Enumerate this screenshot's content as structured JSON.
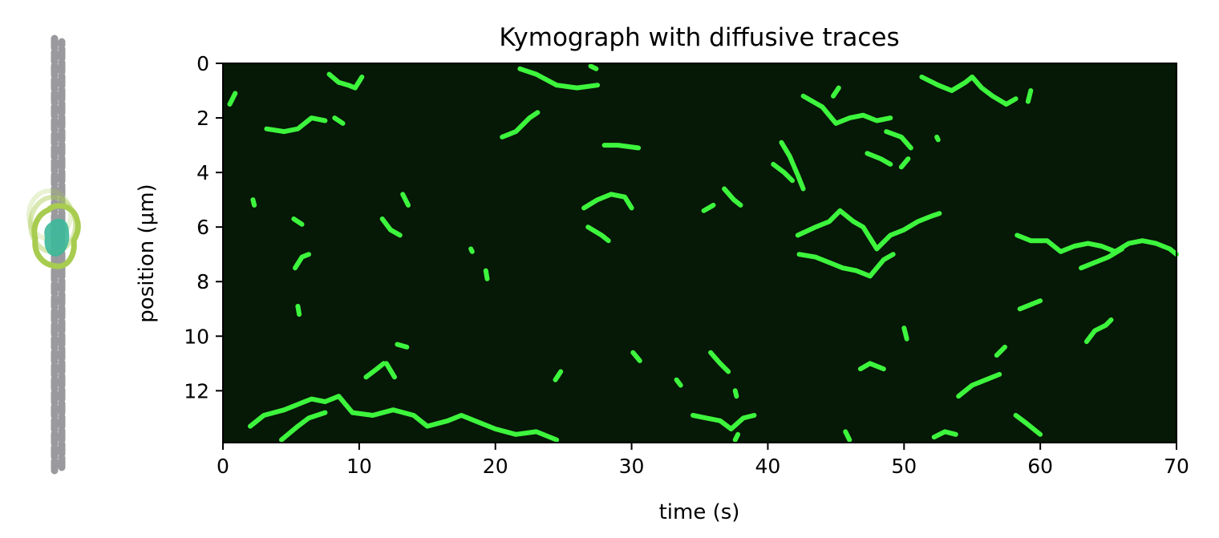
{
  "chart_data": {
    "type": "heatmap",
    "title": "Kymograph with diffusive traces",
    "xlabel": "time (s)",
    "ylabel": "position (μm)",
    "xlim": [
      0,
      70
    ],
    "ylim": [
      0,
      13.9
    ],
    "y_inverted": true,
    "x_ticks": [
      0,
      10,
      20,
      30,
      40,
      50,
      60,
      70
    ],
    "y_ticks": [
      0,
      2,
      4,
      6,
      8,
      10,
      12
    ],
    "x_tick_labels": [
      "0",
      "10",
      "20",
      "30",
      "40",
      "50",
      "60",
      "70"
    ],
    "y_tick_labels": [
      "0",
      "2",
      "4",
      "6",
      "8",
      "10",
      "12"
    ],
    "grid": false,
    "background_color": "#061806",
    "trace_color": "#3df53d",
    "traces": [
      [
        [
          0.5,
          1.5
        ],
        [
          0.9,
          1.1
        ]
      ],
      [
        [
          3.2,
          2.4
        ],
        [
          4.5,
          2.5
        ],
        [
          5.5,
          2.4
        ],
        [
          6.5,
          2.0
        ],
        [
          7.5,
          2.1
        ]
      ],
      [
        [
          8.2,
          2.0
        ],
        [
          8.8,
          2.2
        ]
      ],
      [
        [
          7.8,
          0.4
        ],
        [
          8.5,
          0.7
        ],
        [
          9.2,
          0.8
        ],
        [
          9.7,
          0.9
        ],
        [
          10.2,
          0.5
        ]
      ],
      [
        [
          2.2,
          5.0
        ],
        [
          2.3,
          5.2
        ]
      ],
      [
        [
          5.2,
          5.7
        ],
        [
          5.8,
          5.9
        ]
      ],
      [
        [
          5.3,
          7.5
        ],
        [
          5.8,
          7.1
        ],
        [
          6.3,
          7.0
        ]
      ],
      [
        [
          5.5,
          8.9
        ],
        [
          5.6,
          9.2
        ]
      ],
      [
        [
          11.7,
          5.7
        ],
        [
          12.3,
          6.1
        ],
        [
          13.0,
          6.3
        ]
      ],
      [
        [
          13.2,
          4.8
        ],
        [
          13.6,
          5.2
        ]
      ],
      [
        [
          18.2,
          6.8
        ],
        [
          18.3,
          6.9
        ]
      ],
      [
        [
          19.3,
          7.6
        ],
        [
          19.4,
          7.9
        ]
      ],
      [
        [
          10.5,
          11.5
        ],
        [
          11.3,
          11.2
        ],
        [
          11.8,
          11.0
        ]
      ],
      [
        [
          12.0,
          11.0
        ],
        [
          12.6,
          11.5
        ]
      ],
      [
        [
          12.8,
          10.3
        ],
        [
          13.5,
          10.4
        ]
      ],
      [
        [
          2.0,
          13.3
        ],
        [
          3.0,
          12.9
        ],
        [
          4.5,
          12.7
        ],
        [
          5.5,
          12.5
        ],
        [
          6.5,
          12.3
        ],
        [
          7.5,
          12.4
        ],
        [
          8.5,
          12.2
        ],
        [
          9.5,
          12.8
        ],
        [
          11.0,
          12.9
        ],
        [
          12.5,
          12.7
        ],
        [
          14.0,
          12.9
        ],
        [
          15.0,
          13.3
        ],
        [
          16.5,
          13.1
        ],
        [
          17.5,
          12.9
        ],
        [
          18.5,
          13.1
        ],
        [
          20.0,
          13.4
        ],
        [
          21.5,
          13.6
        ],
        [
          23.0,
          13.5
        ],
        [
          24.5,
          13.8
        ]
      ],
      [
        [
          4.3,
          13.8
        ],
        [
          5.5,
          13.3
        ],
        [
          6.3,
          13.0
        ],
        [
          7.5,
          12.8
        ]
      ],
      [
        [
          20.5,
          2.7
        ],
        [
          21.5,
          2.5
        ],
        [
          22.5,
          2.0
        ],
        [
          23.1,
          1.8
        ]
      ],
      [
        [
          21.8,
          0.2
        ],
        [
          23.0,
          0.4
        ],
        [
          24.5,
          0.8
        ],
        [
          26.0,
          0.9
        ],
        [
          27.5,
          0.8
        ]
      ],
      [
        [
          27.0,
          0.1
        ],
        [
          27.4,
          0.2
        ]
      ],
      [
        [
          24.4,
          11.6
        ],
        [
          24.8,
          11.3
        ]
      ],
      [
        [
          26.5,
          5.3
        ],
        [
          27.5,
          5.0
        ],
        [
          28.5,
          4.8
        ],
        [
          29.5,
          4.9
        ],
        [
          30.0,
          5.3
        ]
      ],
      [
        [
          26.8,
          6.0
        ],
        [
          27.8,
          6.3
        ],
        [
          28.3,
          6.5
        ]
      ],
      [
        [
          28.0,
          3.0
        ],
        [
          29.0,
          3.0
        ],
        [
          30.5,
          3.1
        ]
      ],
      [
        [
          30.1,
          10.6
        ],
        [
          30.6,
          10.9
        ]
      ],
      [
        [
          33.3,
          11.6
        ],
        [
          33.6,
          11.8
        ]
      ],
      [
        [
          35.3,
          5.4
        ],
        [
          36.0,
          5.2
        ]
      ],
      [
        [
          35.8,
          10.6
        ],
        [
          36.5,
          11.0
        ],
        [
          37.1,
          11.3
        ]
      ],
      [
        [
          36.8,
          4.6
        ],
        [
          37.5,
          5.0
        ],
        [
          38.0,
          5.2
        ]
      ],
      [
        [
          37.6,
          12.0
        ],
        [
          37.7,
          12.2
        ]
      ],
      [
        [
          34.5,
          12.9
        ],
        [
          35.5,
          13.0
        ],
        [
          36.5,
          13.1
        ],
        [
          37.3,
          13.4
        ],
        [
          38.2,
          13.0
        ],
        [
          39.0,
          12.9
        ]
      ],
      [
        [
          37.6,
          13.8
        ],
        [
          37.8,
          13.6
        ]
      ],
      [
        [
          40.4,
          3.7
        ],
        [
          41.2,
          4.0
        ],
        [
          41.8,
          4.3
        ]
      ],
      [
        [
          41.0,
          2.9
        ],
        [
          41.6,
          3.4
        ],
        [
          42.2,
          4.1
        ],
        [
          42.6,
          4.6
        ]
      ],
      [
        [
          42.6,
          1.2
        ],
        [
          44.0,
          1.6
        ],
        [
          45.0,
          2.2
        ],
        [
          46.0,
          2.0
        ],
        [
          47.0,
          1.9
        ],
        [
          48.0,
          2.1
        ],
        [
          49.0,
          2.0
        ]
      ],
      [
        [
          44.8,
          1.2
        ],
        [
          45.2,
          0.9
        ]
      ],
      [
        [
          42.2,
          6.3
        ],
        [
          43.5,
          6.0
        ],
        [
          44.5,
          5.8
        ],
        [
          45.3,
          5.4
        ],
        [
          46.3,
          5.8
        ],
        [
          47.0,
          6.0
        ],
        [
          47.5,
          6.4
        ],
        [
          48.0,
          6.8
        ],
        [
          49.0,
          6.3
        ],
        [
          50.0,
          6.1
        ],
        [
          51.0,
          5.8
        ],
        [
          52.0,
          5.6
        ],
        [
          52.6,
          5.5
        ]
      ],
      [
        [
          42.3,
          7.0
        ],
        [
          43.5,
          7.1
        ],
        [
          44.5,
          7.3
        ],
        [
          45.5,
          7.5
        ],
        [
          46.5,
          7.6
        ],
        [
          47.5,
          7.8
        ],
        [
          48.5,
          7.2
        ],
        [
          49.2,
          7.0
        ]
      ],
      [
        [
          47.3,
          3.3
        ],
        [
          48.3,
          3.5
        ],
        [
          49.0,
          3.7
        ]
      ],
      [
        [
          48.7,
          2.5
        ],
        [
          49.8,
          2.7
        ],
        [
          50.5,
          3.1
        ]
      ],
      [
        [
          49.8,
          3.8
        ],
        [
          50.3,
          3.5
        ]
      ],
      [
        [
          46.8,
          11.2
        ],
        [
          47.5,
          11.0
        ],
        [
          48.5,
          11.2
        ]
      ],
      [
        [
          50.0,
          9.7
        ],
        [
          50.2,
          10.1
        ]
      ],
      [
        [
          45.7,
          13.5
        ],
        [
          46.0,
          13.8
        ]
      ],
      [
        [
          51.3,
          0.5
        ],
        [
          52.5,
          0.8
        ],
        [
          53.5,
          1.0
        ],
        [
          54.5,
          0.7
        ],
        [
          55.0,
          0.5
        ],
        [
          55.7,
          0.9
        ],
        [
          56.5,
          1.2
        ],
        [
          57.5,
          1.5
        ],
        [
          58.2,
          1.3
        ]
      ],
      [
        [
          52.4,
          2.7
        ],
        [
          52.5,
          2.8
        ]
      ],
      [
        [
          59.1,
          1.4
        ],
        [
          59.3,
          1.0
        ]
      ],
      [
        [
          54.0,
          12.2
        ],
        [
          55.0,
          11.8
        ],
        [
          56.0,
          11.6
        ],
        [
          57.0,
          11.4
        ]
      ],
      [
        [
          56.8,
          10.7
        ],
        [
          57.4,
          10.4
        ]
      ],
      [
        [
          58.5,
          9.0
        ],
        [
          59.5,
          8.8
        ],
        [
          60.0,
          8.7
        ]
      ],
      [
        [
          58.2,
          12.9
        ],
        [
          59.0,
          13.2
        ],
        [
          60.0,
          13.6
        ]
      ],
      [
        [
          52.2,
          13.7
        ],
        [
          53.0,
          13.5
        ],
        [
          53.8,
          13.6
        ]
      ],
      [
        [
          58.3,
          6.3
        ],
        [
          59.3,
          6.5
        ],
        [
          60.5,
          6.5
        ],
        [
          61.5,
          6.9
        ],
        [
          62.5,
          6.7
        ],
        [
          63.5,
          6.6
        ],
        [
          64.5,
          6.7
        ],
        [
          65.5,
          6.9
        ],
        [
          66.5,
          6.6
        ],
        [
          67.5,
          6.5
        ],
        [
          68.5,
          6.6
        ],
        [
          69.5,
          6.8
        ],
        [
          70.0,
          7.0
        ]
      ],
      [
        [
          63.0,
          7.5
        ],
        [
          64.0,
          7.3
        ],
        [
          65.0,
          7.1
        ],
        [
          66.0,
          6.8
        ]
      ],
      [
        [
          63.4,
          10.2
        ],
        [
          64.0,
          9.8
        ],
        [
          64.8,
          9.6
        ],
        [
          65.2,
          9.4
        ]
      ]
    ]
  },
  "side_icon": {
    "dna_strand_color": "#9a9a9e",
    "protein_outline_color": "#a8cc50",
    "protein_fill_color": "#3cb89a"
  }
}
